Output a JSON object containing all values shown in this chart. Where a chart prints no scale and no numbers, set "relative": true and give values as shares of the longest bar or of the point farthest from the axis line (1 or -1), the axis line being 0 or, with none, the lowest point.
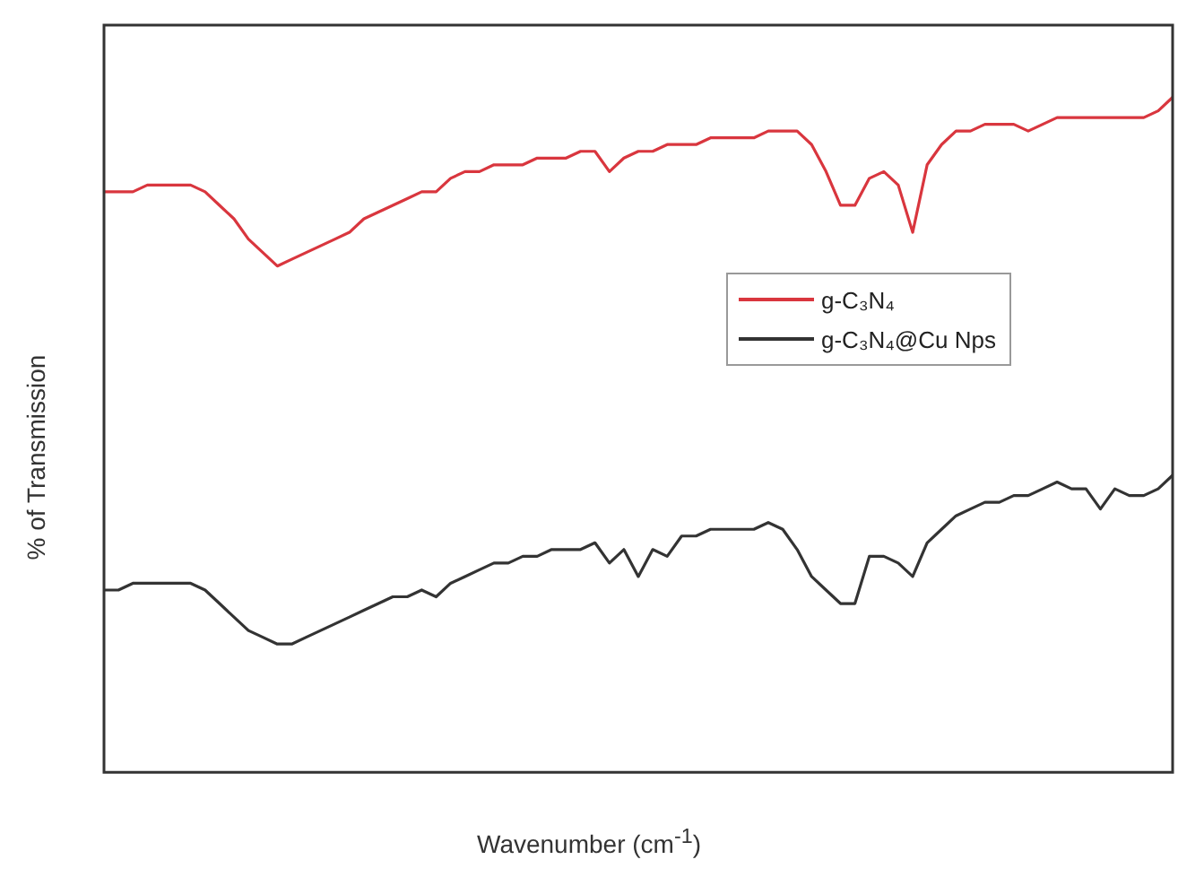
{
  "chart_data": {
    "type": "line",
    "xlabel": "Wavenumber (cm$^{-1}$)",
    "ylabel": "% of Transmission",
    "relative": true,
    "legend": "right",
    "grid": false,
    "marker": "none",
    "line_style": "solid",
    "categories": [
      null,
      null,
      null,
      null,
      null,
      null,
      null,
      null,
      null,
      null,
      null,
      null,
      null,
      null,
      null,
      null,
      null,
      null,
      null,
      null,
      null,
      null,
      null,
      null,
      null,
      null,
      null,
      null,
      null,
      null,
      null,
      null,
      null,
      null,
      null,
      null,
      null,
      null,
      null,
      null,
      null,
      null,
      null,
      null,
      null,
      null,
      null,
      null,
      null,
      null,
      null,
      null,
      null,
      null,
      null,
      null,
      null,
      null,
      null,
      null,
      null,
      null,
      null,
      null,
      null,
      null,
      null,
      null,
      null,
      null,
      null,
      null,
      null,
      null,
      null
    ],
    "series": [
      {
        "name": "g-C₃N₄",
        "color": "#d9363e",
        "values": [
          0.86,
          0.86,
          0.86,
          0.87,
          0.87,
          0.87,
          0.87,
          0.86,
          0.84,
          0.82,
          0.79,
          0.77,
          0.75,
          0.76,
          0.77,
          0.78,
          0.79,
          0.8,
          0.82,
          0.83,
          0.84,
          0.85,
          0.86,
          0.86,
          0.88,
          0.89,
          0.89,
          0.9,
          0.9,
          0.9,
          0.91,
          0.91,
          0.91,
          0.92,
          0.92,
          0.89,
          0.91,
          0.92,
          0.92,
          0.93,
          0.93,
          0.93,
          0.94,
          0.94,
          0.94,
          0.94,
          0.95,
          0.95,
          0.95,
          0.93,
          0.89,
          0.84,
          0.84,
          0.88,
          0.89,
          0.87,
          0.8,
          0.9,
          0.93,
          0.95,
          0.95,
          0.96,
          0.96,
          0.96,
          0.95,
          0.96,
          0.97,
          0.97,
          0.97,
          0.97,
          0.97,
          0.97,
          0.97,
          0.98,
          1.0
        ]
      },
      {
        "name": "g-C₃N₄@Cu Nps",
        "color": "#333333",
        "values": [
          0.27,
          0.27,
          0.28,
          0.28,
          0.28,
          0.28,
          0.28,
          0.27,
          0.25,
          0.23,
          0.21,
          0.2,
          0.19,
          0.19,
          0.2,
          0.21,
          0.22,
          0.23,
          0.24,
          0.25,
          0.26,
          0.26,
          0.27,
          0.26,
          0.28,
          0.29,
          0.3,
          0.31,
          0.31,
          0.32,
          0.32,
          0.33,
          0.33,
          0.33,
          0.34,
          0.31,
          0.33,
          0.29,
          0.33,
          0.32,
          0.35,
          0.35,
          0.36,
          0.36,
          0.36,
          0.36,
          0.37,
          0.36,
          0.33,
          0.29,
          0.27,
          0.25,
          0.25,
          0.32,
          0.32,
          0.31,
          0.29,
          0.34,
          0.36,
          0.38,
          0.39,
          0.4,
          0.4,
          0.41,
          0.41,
          0.42,
          0.43,
          0.42,
          0.42,
          0.39,
          0.42,
          0.41,
          0.41,
          0.42,
          0.44
        ]
      }
    ]
  }
}
